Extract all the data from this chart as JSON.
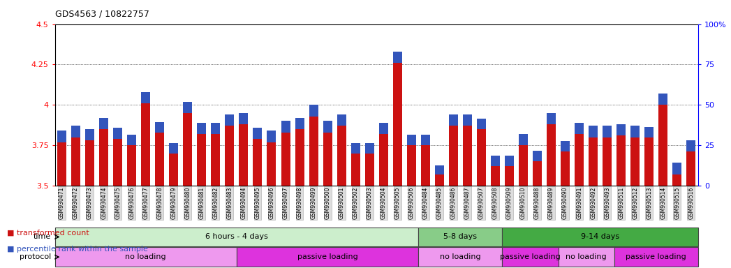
{
  "title": "GDS4563 / 10822757",
  "samples": [
    "GSM930471",
    "GSM930472",
    "GSM930473",
    "GSM930474",
    "GSM930475",
    "GSM930476",
    "GSM930477",
    "GSM930478",
    "GSM930479",
    "GSM930480",
    "GSM930481",
    "GSM930482",
    "GSM930483",
    "GSM930494",
    "GSM930495",
    "GSM930496",
    "GSM930497",
    "GSM930498",
    "GSM930499",
    "GSM930500",
    "GSM930501",
    "GSM930502",
    "GSM930503",
    "GSM930504",
    "GSM930505",
    "GSM930506",
    "GSM930484",
    "GSM930485",
    "GSM930486",
    "GSM930487",
    "GSM930507",
    "GSM930508",
    "GSM930509",
    "GSM930510",
    "GSM930488",
    "GSM930489",
    "GSM930490",
    "GSM930491",
    "GSM930492",
    "GSM930493",
    "GSM930511",
    "GSM930512",
    "GSM930513",
    "GSM930514",
    "GSM930515",
    "GSM930516"
  ],
  "red_values": [
    3.77,
    3.8,
    3.78,
    3.85,
    3.79,
    3.75,
    4.01,
    3.83,
    3.7,
    3.95,
    3.82,
    3.82,
    3.87,
    3.88,
    3.79,
    3.77,
    3.83,
    3.85,
    3.93,
    3.83,
    3.87,
    3.7,
    3.7,
    3.82,
    4.26,
    3.75,
    3.75,
    3.57,
    3.87,
    3.87,
    3.85,
    3.62,
    3.62,
    3.75,
    3.65,
    3.88,
    3.71,
    3.82,
    3.8,
    3.8,
    3.81,
    3.8,
    3.8,
    4.0,
    3.57,
    3.71
  ],
  "blue_values": [
    0.07,
    0.07,
    0.07,
    0.07,
    0.07,
    0.065,
    0.07,
    0.065,
    0.065,
    0.07,
    0.07,
    0.07,
    0.07,
    0.07,
    0.07,
    0.07,
    0.07,
    0.07,
    0.07,
    0.07,
    0.07,
    0.065,
    0.065,
    0.07,
    0.07,
    0.065,
    0.065,
    0.055,
    0.07,
    0.07,
    0.065,
    0.065,
    0.065,
    0.07,
    0.065,
    0.07,
    0.065,
    0.07,
    0.07,
    0.07,
    0.07,
    0.07,
    0.065,
    0.07,
    0.075,
    0.07
  ],
  "ylim": [
    3.5,
    4.5
  ],
  "yticks_left": [
    3.5,
    3.75,
    4.0,
    4.25,
    4.5
  ],
  "yticks_right_pct": [
    0,
    25,
    50,
    75,
    100
  ],
  "ytick_labels_right": [
    "0",
    "25",
    "50",
    "75",
    "100%"
  ],
  "red_color": "#cc1111",
  "blue_color": "#3355bb",
  "bar_width": 0.65,
  "time_groups": [
    {
      "label": "6 hours - 4 days",
      "start": 0,
      "end": 26,
      "color": "#cceecc"
    },
    {
      "label": "5-8 days",
      "start": 26,
      "end": 32,
      "color": "#88cc88"
    },
    {
      "label": "9-14 days",
      "start": 32,
      "end": 46,
      "color": "#44aa44"
    }
  ],
  "protocol_groups": [
    {
      "label": "no loading",
      "start": 0,
      "end": 13,
      "color": "#ee99ee"
    },
    {
      "label": "passive loading",
      "start": 13,
      "end": 26,
      "color": "#dd33dd"
    },
    {
      "label": "no loading",
      "start": 26,
      "end": 32,
      "color": "#ee99ee"
    },
    {
      "label": "passive loading",
      "start": 32,
      "end": 36,
      "color": "#dd33dd"
    },
    {
      "label": "no loading",
      "start": 36,
      "end": 40,
      "color": "#ee99ee"
    },
    {
      "label": "passive loading",
      "start": 40,
      "end": 46,
      "color": "#dd33dd"
    }
  ],
  "legend_items": [
    {
      "label": "transformed count",
      "color": "#cc1111"
    },
    {
      "label": "percentile rank within the sample",
      "color": "#3355bb"
    }
  ]
}
